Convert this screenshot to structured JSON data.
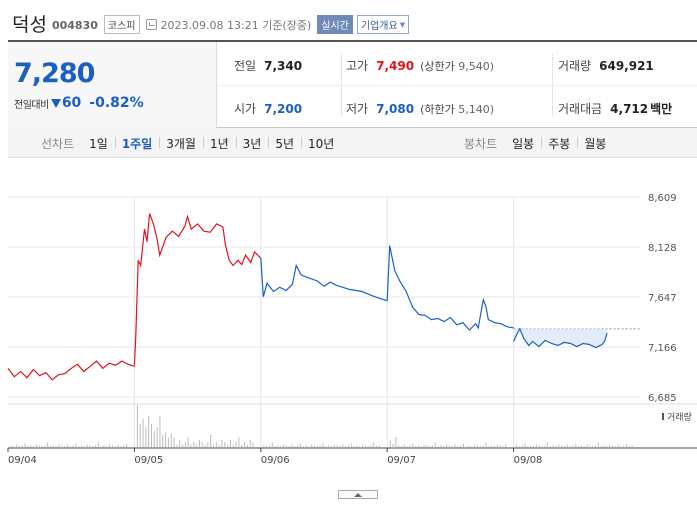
{
  "header": {
    "name": "덕성",
    "code": "004830",
    "market": "코스피",
    "datetime": "2023.09.08 13:21 기준(장중)",
    "realtime_label": "실시간",
    "company_label": "기업개요"
  },
  "summary": {
    "price": "7,280",
    "change_label": "전일대비",
    "change": "60",
    "change_pct": "-0.82%",
    "prev_label": "전일",
    "prev": "7,340",
    "high_label": "고가",
    "high": "7,490",
    "upper_label": "(상한가",
    "upper": "9,540)",
    "volume_label": "거래량",
    "volume": "649,921",
    "open_label": "시가",
    "open": "7,200",
    "low_label": "저가",
    "low": "7,080",
    "lower_label": "(하한가",
    "lower": "5,140)",
    "amount_label": "거래대금",
    "amount": "4,712",
    "amount_unit": "백만"
  },
  "tabs": {
    "line_label": "선차트",
    "line_tabs": [
      "1일",
      "1주일",
      "3개월",
      "1년",
      "3년",
      "5년",
      "10년"
    ],
    "candle_label": "봉차트",
    "candle_tabs": [
      "일봉",
      "주봉",
      "월봉"
    ]
  },
  "colors": {
    "up": "#e0131d",
    "down": "#1b5fc4",
    "accent": "#6f8ab7"
  },
  "chart_data": {
    "type": "line",
    "period": "1주일",
    "x_dates": [
      "09/04",
      "09/05",
      "09/06",
      "09/07",
      "09/08"
    ],
    "ylim": [
      6685,
      8609
    ],
    "y_ticks": [
      6685,
      7166,
      7647,
      8128,
      8609
    ],
    "y_tick_labels": [
      "6,685",
      "7,166",
      "7,647",
      "8,128",
      "8,609"
    ],
    "prev_close": 7340,
    "volume_label": "거래량",
    "series": [
      {
        "day": "09/04",
        "color": "up",
        "points": [
          [
            0,
            6960
          ],
          [
            0.05,
            6880
          ],
          [
            0.1,
            6930
          ],
          [
            0.15,
            6870
          ],
          [
            0.2,
            6950
          ],
          [
            0.25,
            6890
          ],
          [
            0.3,
            6920
          ],
          [
            0.35,
            6850
          ],
          [
            0.4,
            6900
          ],
          [
            0.45,
            6910
          ],
          [
            0.5,
            6960
          ],
          [
            0.55,
            7000
          ],
          [
            0.6,
            6930
          ],
          [
            0.65,
            6980
          ],
          [
            0.7,
            7030
          ],
          [
            0.75,
            6960
          ],
          [
            0.8,
            7010
          ],
          [
            0.85,
            6990
          ],
          [
            0.9,
            7030
          ],
          [
            0.95,
            7000
          ],
          [
            1.0,
            6980
          ]
        ]
      },
      {
        "day": "09/05",
        "color": "up",
        "points": [
          [
            0,
            6990
          ],
          [
            0.01,
            7250
          ],
          [
            0.03,
            8000
          ],
          [
            0.05,
            7950
          ],
          [
            0.08,
            8300
          ],
          [
            0.1,
            8180
          ],
          [
            0.12,
            8450
          ],
          [
            0.15,
            8350
          ],
          [
            0.18,
            8200
          ],
          [
            0.2,
            8050
          ],
          [
            0.23,
            8150
          ],
          [
            0.25,
            8220
          ],
          [
            0.3,
            8280
          ],
          [
            0.35,
            8230
          ],
          [
            0.4,
            8330
          ],
          [
            0.42,
            8420
          ],
          [
            0.45,
            8300
          ],
          [
            0.5,
            8350
          ],
          [
            0.55,
            8280
          ],
          [
            0.6,
            8270
          ],
          [
            0.65,
            8350
          ],
          [
            0.7,
            8320
          ],
          [
            0.72,
            8150
          ],
          [
            0.75,
            8000
          ],
          [
            0.78,
            7950
          ],
          [
            0.82,
            8000
          ],
          [
            0.85,
            7960
          ],
          [
            0.88,
            8050
          ],
          [
            0.92,
            7980
          ],
          [
            0.95,
            8080
          ],
          [
            1.0,
            8020
          ]
        ]
      },
      {
        "day": "09/06",
        "color": "down",
        "points": [
          [
            0,
            8020
          ],
          [
            0.02,
            7650
          ],
          [
            0.05,
            7780
          ],
          [
            0.1,
            7700
          ],
          [
            0.15,
            7740
          ],
          [
            0.2,
            7710
          ],
          [
            0.25,
            7770
          ],
          [
            0.28,
            7950
          ],
          [
            0.32,
            7860
          ],
          [
            0.38,
            7830
          ],
          [
            0.45,
            7800
          ],
          [
            0.5,
            7750
          ],
          [
            0.55,
            7790
          ],
          [
            0.6,
            7760
          ],
          [
            0.7,
            7720
          ],
          [
            0.8,
            7700
          ],
          [
            0.9,
            7650
          ],
          [
            1.0,
            7610
          ]
        ]
      },
      {
        "day": "09/07",
        "color": "down",
        "points": [
          [
            0,
            7610
          ],
          [
            0.02,
            8140
          ],
          [
            0.06,
            7900
          ],
          [
            0.1,
            7800
          ],
          [
            0.15,
            7700
          ],
          [
            0.2,
            7550
          ],
          [
            0.25,
            7480
          ],
          [
            0.3,
            7470
          ],
          [
            0.35,
            7430
          ],
          [
            0.4,
            7440
          ],
          [
            0.45,
            7410
          ],
          [
            0.5,
            7450
          ],
          [
            0.55,
            7380
          ],
          [
            0.6,
            7400
          ],
          [
            0.65,
            7330
          ],
          [
            0.7,
            7390
          ],
          [
            0.72,
            7350
          ],
          [
            0.76,
            7620
          ],
          [
            0.78,
            7560
          ],
          [
            0.8,
            7430
          ],
          [
            0.85,
            7400
          ],
          [
            0.9,
            7390
          ],
          [
            0.95,
            7360
          ],
          [
            1.0,
            7350
          ]
        ]
      },
      {
        "day": "09/08",
        "color": "down",
        "points": [
          [
            0,
            7220
          ],
          [
            0.03,
            7300
          ],
          [
            0.05,
            7340
          ],
          [
            0.08,
            7250
          ],
          [
            0.12,
            7180
          ],
          [
            0.15,
            7220
          ],
          [
            0.2,
            7170
          ],
          [
            0.25,
            7230
          ],
          [
            0.3,
            7200
          ],
          [
            0.35,
            7180
          ],
          [
            0.4,
            7210
          ],
          [
            0.45,
            7200
          ],
          [
            0.5,
            7170
          ],
          [
            0.55,
            7200
          ],
          [
            0.6,
            7190
          ],
          [
            0.65,
            7160
          ],
          [
            0.7,
            7190
          ],
          [
            0.72,
            7220
          ],
          [
            0.74,
            7300
          ]
        ]
      }
    ]
  }
}
